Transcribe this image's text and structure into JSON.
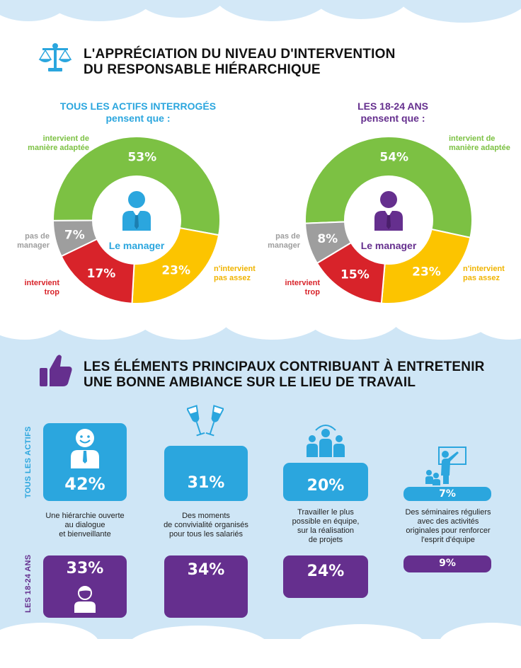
{
  "section1": {
    "title_line1": "L'APPRÉCIATION DU NIVEAU D'INTERVENTION",
    "title_line2": "DU RESPONSABLE HIÉRARCHIQUE",
    "icon": "scales-icon"
  },
  "chart_data": [
    {
      "type": "pie",
      "title": "TOUS LES ACTIFS INTERROGÉS",
      "subtitle": "pensent que :",
      "center_label": "Le manager",
      "series": [
        {
          "name": "intervient de manière adaptée",
          "value": 53,
          "label": "53%",
          "color": "#7cc143"
        },
        {
          "name": "n'intervient pas assez",
          "value": 23,
          "label": "23%",
          "color": "#fcc400"
        },
        {
          "name": "intervient trop",
          "value": 17,
          "label": "17%",
          "color": "#d8232a"
        },
        {
          "name": "pas de manager",
          "value": 7,
          "label": "7%",
          "color": "#9e9e9e"
        }
      ]
    },
    {
      "type": "pie",
      "title": "LES 18-24 ANS",
      "subtitle": "pensent que :",
      "center_label": "Le manager",
      "series": [
        {
          "name": "intervient de manière adaptée",
          "value": 54,
          "label": "54%",
          "color": "#7cc143"
        },
        {
          "name": "n'intervient pas assez",
          "value": 23,
          "label": "23%",
          "color": "#fcc400"
        },
        {
          "name": "intervient trop",
          "value": 15,
          "label": "15%",
          "color": "#d8232a"
        },
        {
          "name": "pas de manager",
          "value": 8,
          "label": "8%",
          "color": "#9e9e9e"
        }
      ]
    }
  ],
  "labels": {
    "adaptee_1": "intervient de",
    "adaptee_2": "manière adaptée",
    "pasassez_1": "n'intervient",
    "pasassez_2": "pas assez",
    "trop_1": "intervient",
    "trop_2": "trop",
    "pasmanager_1": "pas de",
    "pasmanager_2": "manager"
  },
  "section2": {
    "title_line1": "LES ÉLÉMENTS PRINCIPAUX CONTRIBUANT À ENTRETENIR",
    "title_line2": "UNE BONNE AMBIANCE SUR LE LIEU DE TRAVAIL",
    "icon": "thumbs-up-icon",
    "row_label_all": "TOUS LES ACTIFS",
    "row_label_young": "LES 18-24 ANS",
    "items": [
      {
        "all": 42,
        "all_label": "42%",
        "young": 33,
        "young_label": "33%",
        "icon": "smiling-person-icon",
        "desc": [
          "Une hiérarchie ouverte",
          "au dialogue",
          "et bienveillante"
        ]
      },
      {
        "all": 31,
        "all_label": "31%",
        "young": 34,
        "young_label": "34%",
        "icon": "champagne-glasses-icon",
        "desc": [
          "Des moments",
          "de convivialité organisés",
          "pour tous les salariés"
        ]
      },
      {
        "all": 20,
        "all_label": "20%",
        "young": 24,
        "young_label": "24%",
        "icon": "team-icon",
        "desc": [
          "Travailler le plus",
          "possible en équipe,",
          "sur la réalisation",
          "de projets"
        ]
      },
      {
        "all": 7,
        "all_label": "7%",
        "young": 9,
        "young_label": "9%",
        "icon": "seminar-presentation-icon",
        "desc": [
          "Des séminaires réguliers",
          "avec des activités",
          "originales pour renforcer",
          "l'esprit d'équipe"
        ]
      }
    ]
  },
  "colors": {
    "blue": "#2ba6de",
    "purple": "#652f8e",
    "green": "#7cc143",
    "yellow": "#fcc400",
    "red": "#d8232a",
    "grey": "#9e9e9e"
  }
}
